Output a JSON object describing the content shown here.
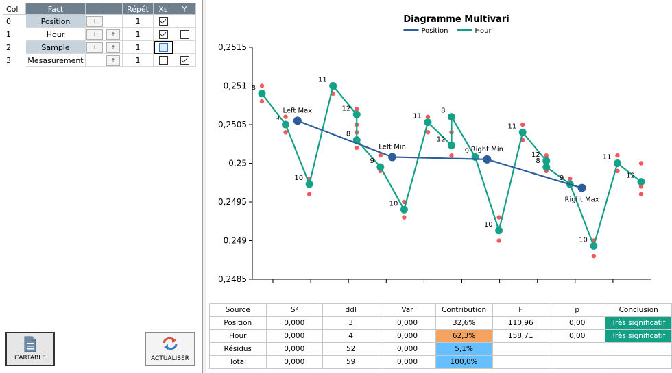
{
  "factors_table": {
    "headers": [
      "Col",
      "Fact",
      "",
      "",
      "Répét",
      "Xs",
      "Y"
    ],
    "rows": [
      {
        "col": "0",
        "name": "Position",
        "down": "⊥",
        "up": "",
        "rep": "1",
        "xs": true,
        "y": null,
        "selected": true
      },
      {
        "col": "1",
        "name": "Hour",
        "down": "⊥",
        "up": "↑",
        "rep": "1",
        "xs": true,
        "y": false,
        "selected": false
      },
      {
        "col": "2",
        "name": "Sample",
        "down": "⊥",
        "up": "↑",
        "rep": "1",
        "xs": false,
        "y": null,
        "selected": true
      },
      {
        "col": "3",
        "name": "Mesasurement",
        "down": "",
        "up": "↑",
        "rep": "1",
        "xs": false,
        "y": true,
        "selected": false
      }
    ]
  },
  "buttons": {
    "cartable": "CARTABLE",
    "actualiser": "ACTUALISER"
  },
  "icons": {
    "cartable": "document-icon",
    "actualiser": "refresh-icon"
  },
  "chart_data": {
    "type": "line",
    "title": "Diagramme Multivari",
    "legend": [
      "Position",
      "Hour"
    ],
    "legend_placement": "top-center",
    "colors": {
      "Position": "#2e5d9e",
      "Hour": "#15a088",
      "raw": "#f05a5a"
    },
    "ylim": [
      0.2485,
      0.2515
    ],
    "yticks": [
      "0,2515",
      "0,251",
      "0,2505",
      "0,25",
      "0,2495",
      "0,249",
      "0,2485"
    ],
    "ytick_values": [
      0.2515,
      0.251,
      0.2505,
      0.25,
      0.2495,
      0.249,
      0.2485
    ],
    "position_series": [
      {
        "label": "Left Max",
        "x": 2.5,
        "y": 0.25055
      },
      {
        "label": "Left Min",
        "x": 6.5,
        "y": 0.25008
      },
      {
        "label": "Right Min",
        "x": 10.5,
        "y": 0.25005
      },
      {
        "label": "Right Max",
        "x": 14.5,
        "y": 0.24968
      }
    ],
    "hour_series": [
      {
        "label": "8",
        "x": 1,
        "y": 0.2509
      },
      {
        "label": "9",
        "x": 2,
        "y": 0.2505
      },
      {
        "label": "10",
        "x": 3,
        "y": 0.24973
      },
      {
        "label": "11",
        "x": 4,
        "y": 0.251
      },
      {
        "label": "12",
        "x": 5,
        "y": 0.25063
      },
      {
        "label": "8",
        "x": 5,
        "y": 0.2503
      },
      {
        "label": "9",
        "x": 6,
        "y": 0.24995
      },
      {
        "label": "10",
        "x": 7,
        "y": 0.2494
      },
      {
        "label": "11",
        "x": 8,
        "y": 0.25053
      },
      {
        "label": "12",
        "x": 9,
        "y": 0.25023
      },
      {
        "label": "8",
        "x": 9,
        "y": 0.2506
      },
      {
        "label": "9",
        "x": 10,
        "y": 0.25008
      },
      {
        "label": "10",
        "x": 11,
        "y": 0.24913
      },
      {
        "label": "11",
        "x": 12,
        "y": 0.2504
      },
      {
        "label": "12",
        "x": 13,
        "y": 0.25003
      },
      {
        "label": "8",
        "x": 13,
        "y": 0.24995
      },
      {
        "label": "9",
        "x": 14,
        "y": 0.24973
      },
      {
        "label": "10",
        "x": 15,
        "y": 0.24893
      },
      {
        "label": "11",
        "x": 16,
        "y": 0.25
      },
      {
        "label": "12",
        "x": 17,
        "y": 0.24976
      }
    ],
    "raw_points": [
      [
        1,
        0.251
      ],
      [
        1,
        0.2508
      ],
      [
        2,
        0.2506
      ],
      [
        2,
        0.2504
      ],
      [
        3,
        0.2498
      ],
      [
        3,
        0.2496
      ],
      [
        4,
        0.251
      ],
      [
        4,
        0.2509
      ],
      [
        5,
        0.2507
      ],
      [
        5,
        0.2505
      ],
      [
        5,
        0.2504
      ],
      [
        5,
        0.2502
      ],
      [
        6,
        0.2501
      ],
      [
        6,
        0.2499
      ],
      [
        7,
        0.2495
      ],
      [
        7,
        0.2493
      ],
      [
        8,
        0.2506
      ],
      [
        8,
        0.2504
      ],
      [
        9,
        0.2504
      ],
      [
        9,
        0.2501
      ],
      [
        9,
        0.2506
      ],
      [
        10,
        0.2501
      ],
      [
        11,
        0.2493
      ],
      [
        11,
        0.249
      ],
      [
        12,
        0.2505
      ],
      [
        12,
        0.2503
      ],
      [
        13,
        0.2501
      ],
      [
        13,
        0.2499
      ],
      [
        13,
        0.25
      ],
      [
        14,
        0.2498
      ],
      [
        15,
        0.249
      ],
      [
        15,
        0.2488
      ],
      [
        16,
        0.2501
      ],
      [
        16,
        0.2499
      ],
      [
        17,
        0.25
      ],
      [
        17,
        0.2497
      ],
      [
        17,
        0.2496
      ]
    ],
    "x_slot_count": 10
  },
  "anova": {
    "headers": [
      "Source",
      "S²",
      "ddl",
      "Var",
      "Contribution",
      "F",
      "p",
      "Conclusion"
    ],
    "rows": [
      {
        "source": "Position",
        "s2": "0,000",
        "ddl": "3",
        "var": "0,000",
        "contribution": "32,6%",
        "f": "110,96",
        "p": "0,00",
        "conclusion": "Très significatif",
        "contrib_color": "",
        "concl_color": "#14a085"
      },
      {
        "source": "Hour",
        "s2": "0,000",
        "ddl": "4",
        "var": "0,000",
        "contribution": "62,3%",
        "f": "158,71",
        "p": "0,00",
        "conclusion": "Très significatif",
        "contrib_color": "#f4a460",
        "concl_color": "#14a085"
      },
      {
        "source": "Résidus",
        "s2": "0,000",
        "ddl": "52",
        "var": "0,000",
        "contribution": "5,1%",
        "f": "",
        "p": "",
        "conclusion": "",
        "contrib_color": "#66bfff",
        "concl_color": ""
      },
      {
        "source": "Total",
        "s2": "0,000",
        "ddl": "59",
        "var": "0,000",
        "contribution": "100,0%",
        "f": "",
        "p": "",
        "conclusion": "",
        "contrib_color": "#66bfff",
        "concl_color": ""
      }
    ]
  }
}
